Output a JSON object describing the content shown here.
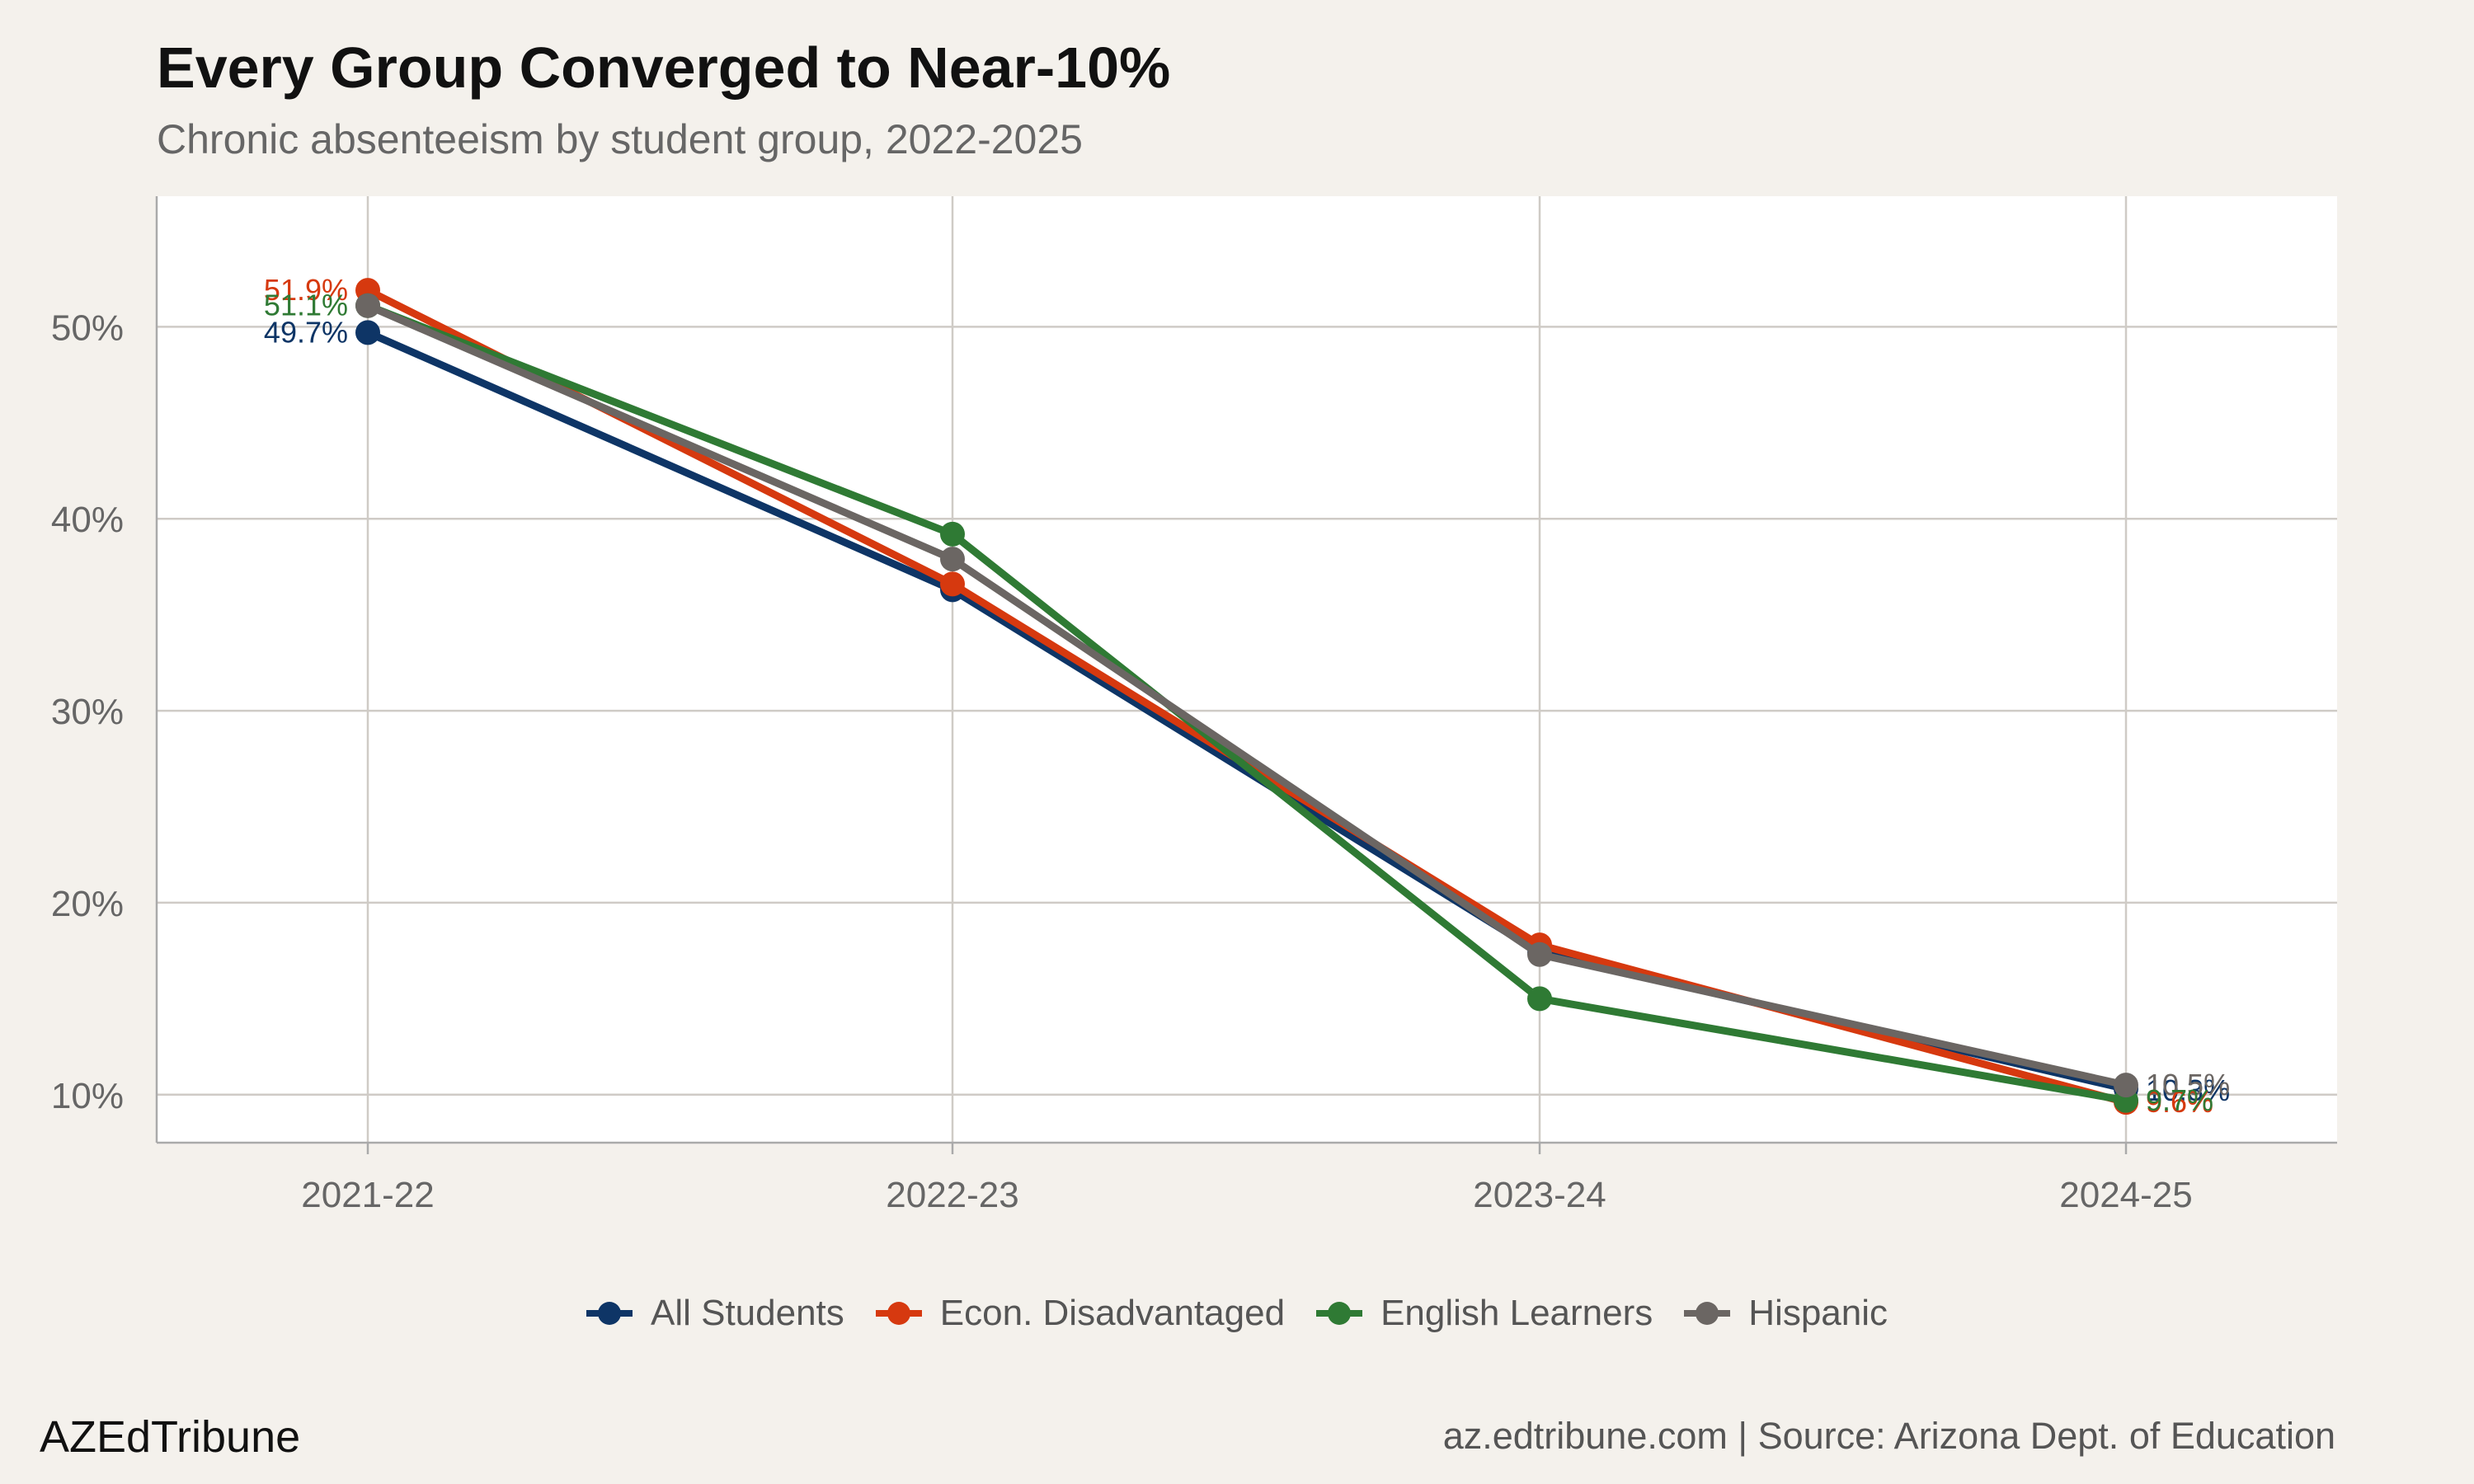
{
  "chart_data": {
    "type": "line",
    "title": "Every Group Converged to Near-10%",
    "subtitle": "Chronic absenteeism by student group, 2022-2025",
    "categories": [
      "2021-22",
      "2022-23",
      "2023-24",
      "2024-25"
    ],
    "series": [
      {
        "name": "All Students",
        "color": "#0e3566",
        "values": [
          49.7,
          36.3,
          17.4,
          10.3
        ]
      },
      {
        "name": "Econ. Disadvantaged",
        "color": "#d6390f",
        "values": [
          51.9,
          36.6,
          17.8,
          9.6
        ]
      },
      {
        "name": "English Learners",
        "color": "#2f7a34",
        "values": [
          51.1,
          39.2,
          15.0,
          9.7
        ]
      },
      {
        "name": "Hispanic",
        "color": "#6b6663",
        "values": [
          51.1,
          37.9,
          17.3,
          10.5
        ]
      }
    ],
    "start_labels": [
      "51.9%",
      "51.1%",
      "49.7%"
    ],
    "end_labels": [
      "10.3%",
      "10.5%",
      "9.6%",
      "9.7%"
    ],
    "yticks": [
      "10%",
      "20%",
      "30%",
      "40%",
      "50%"
    ],
    "ylim": [
      7.5,
      56.8
    ],
    "grid": true,
    "legend_position": "bottom"
  },
  "footer": {
    "brand": "AZEdTribune",
    "source": "az.edtribune.com | Source: Arizona Dept. of Education"
  }
}
